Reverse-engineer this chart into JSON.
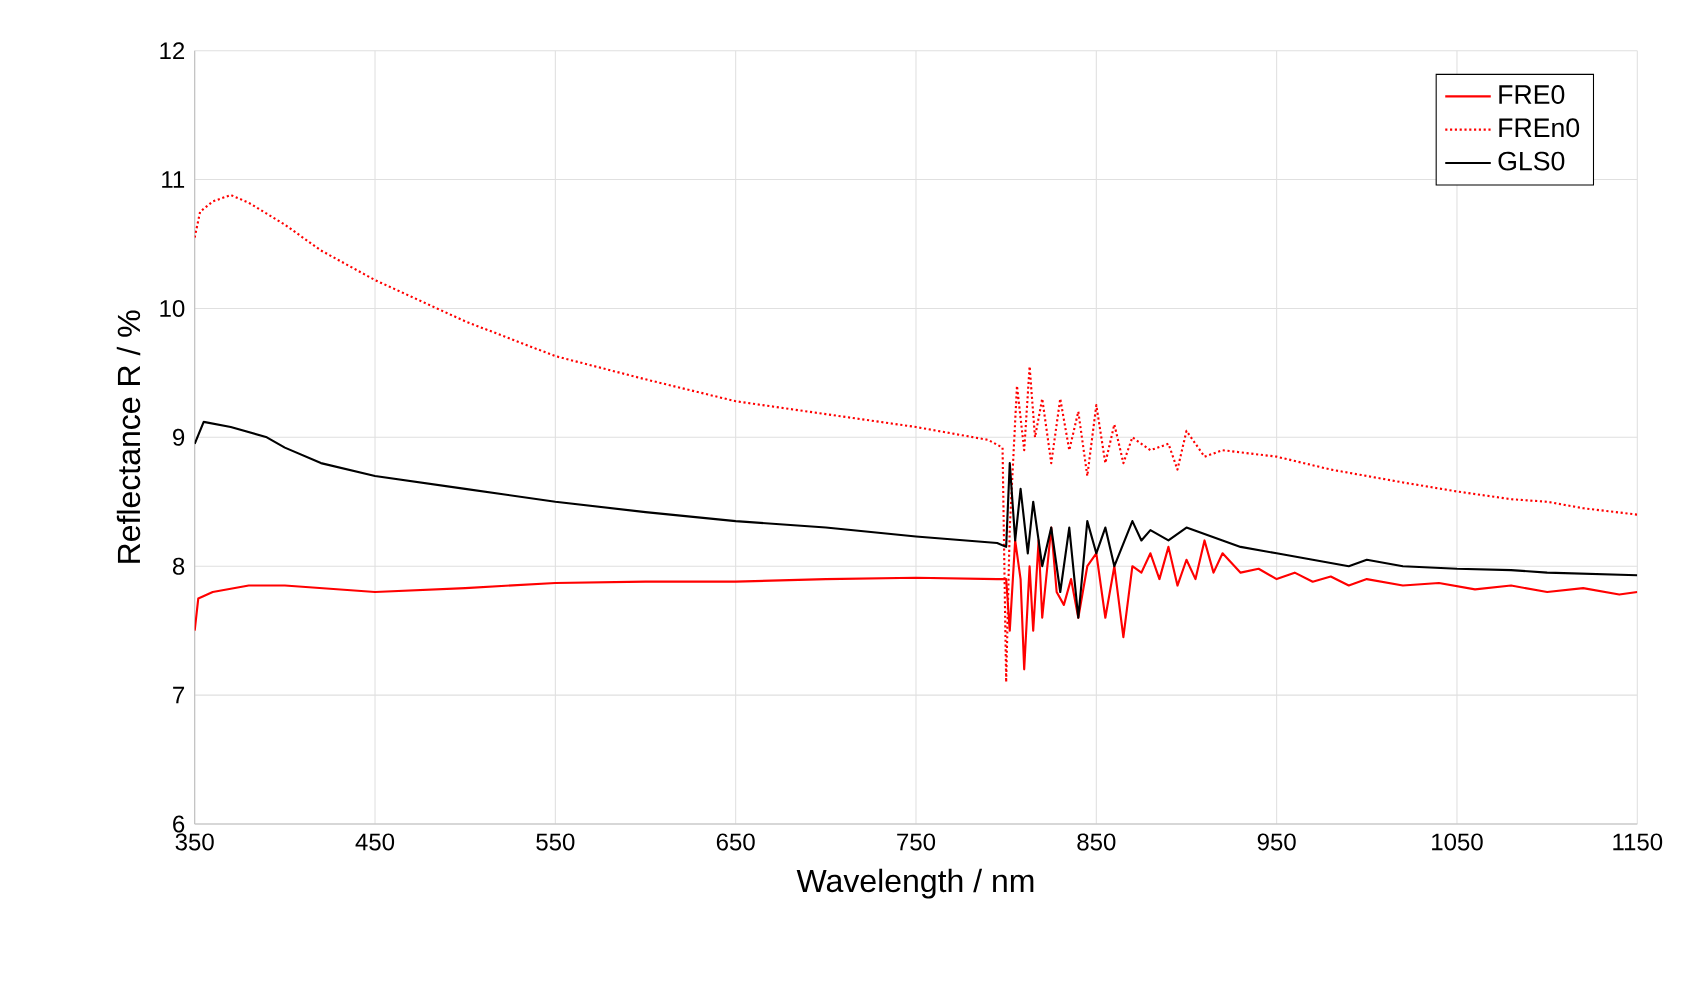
{
  "chart_data": {
    "type": "line",
    "xlabel": "Wavelength / nm",
    "ylabel": "Reflectance R / %",
    "xlim": [
      350,
      1150
    ],
    "xticks": [
      350,
      450,
      550,
      650,
      750,
      850,
      950,
      1050,
      1150
    ],
    "ylim": [
      6,
      12
    ],
    "yticks": [
      6,
      7,
      8,
      9,
      10,
      11,
      12
    ],
    "grid": true,
    "legend": "top right",
    "marker": "none",
    "series": [
      {
        "name": "FRE0",
        "color": "#ff0000",
        "line_style": "solid",
        "x": [
          350,
          352,
          360,
          380,
          400,
          450,
          500,
          550,
          600,
          650,
          700,
          750,
          795,
          800,
          802,
          805,
          808,
          810,
          813,
          815,
          818,
          820,
          825,
          828,
          832,
          836,
          840,
          845,
          850,
          855,
          860,
          865,
          870,
          875,
          880,
          885,
          890,
          895,
          900,
          905,
          910,
          915,
          920,
          930,
          940,
          950,
          960,
          970,
          980,
          990,
          1000,
          1020,
          1040,
          1060,
          1080,
          1100,
          1120,
          1140,
          1150
        ],
        "values": [
          7.5,
          7.75,
          7.8,
          7.85,
          7.85,
          7.8,
          7.83,
          7.87,
          7.88,
          7.88,
          7.9,
          7.91,
          7.9,
          7.9,
          7.5,
          8.2,
          7.9,
          7.2,
          8.0,
          7.5,
          8.2,
          7.6,
          8.3,
          7.8,
          7.7,
          7.9,
          7.6,
          8.0,
          8.1,
          7.6,
          8.0,
          7.45,
          8.0,
          7.95,
          8.1,
          7.9,
          8.15,
          7.85,
          8.05,
          7.9,
          8.2,
          7.95,
          8.1,
          7.95,
          7.98,
          7.9,
          7.95,
          7.88,
          7.92,
          7.85,
          7.9,
          7.85,
          7.87,
          7.82,
          7.85,
          7.8,
          7.83,
          7.78,
          7.8
        ]
      },
      {
        "name": "FREn0",
        "color": "#ff0000",
        "line_style": "dotted",
        "x": [
          350,
          353,
          360,
          370,
          380,
          400,
          420,
          450,
          500,
          550,
          600,
          650,
          700,
          750,
          790,
          798,
          800,
          802,
          806,
          810,
          813,
          816,
          820,
          825,
          830,
          835,
          840,
          845,
          850,
          855,
          860,
          865,
          870,
          880,
          890,
          895,
          900,
          910,
          920,
          950,
          980,
          1000,
          1020,
          1050,
          1080,
          1100,
          1120,
          1150
        ],
        "values": [
          10.55,
          10.75,
          10.83,
          10.88,
          10.82,
          10.65,
          10.45,
          10.22,
          9.9,
          9.63,
          9.45,
          9.28,
          9.18,
          9.08,
          8.98,
          8.92,
          7.1,
          8.3,
          9.4,
          8.9,
          9.55,
          9.0,
          9.3,
          8.8,
          9.3,
          8.9,
          9.2,
          8.7,
          9.25,
          8.8,
          9.1,
          8.8,
          9.0,
          8.9,
          8.95,
          8.75,
          9.05,
          8.85,
          8.9,
          8.85,
          8.75,
          8.7,
          8.65,
          8.58,
          8.52,
          8.5,
          8.45,
          8.4
        ]
      },
      {
        "name": "GLS0",
        "color": "#000000",
        "line_style": "solid",
        "x": [
          350,
          355,
          370,
          390,
          400,
          420,
          450,
          500,
          550,
          600,
          650,
          700,
          750,
          795,
          800,
          802,
          805,
          808,
          812,
          815,
          820,
          825,
          830,
          835,
          840,
          845,
          850,
          855,
          860,
          870,
          875,
          880,
          890,
          900,
          910,
          920,
          930,
          950,
          970,
          990,
          1000,
          1020,
          1050,
          1080,
          1100,
          1150
        ],
        "values": [
          8.95,
          9.12,
          9.08,
          9.0,
          8.92,
          8.8,
          8.7,
          8.6,
          8.5,
          8.42,
          8.35,
          8.3,
          8.23,
          8.18,
          8.15,
          8.8,
          8.2,
          8.6,
          8.1,
          8.5,
          8.0,
          8.3,
          7.8,
          8.3,
          7.6,
          8.35,
          8.1,
          8.3,
          8.0,
          8.35,
          8.2,
          8.28,
          8.2,
          8.3,
          8.25,
          8.2,
          8.15,
          8.1,
          8.05,
          8.0,
          8.05,
          8.0,
          7.98,
          7.97,
          7.95,
          7.93
        ]
      }
    ]
  }
}
